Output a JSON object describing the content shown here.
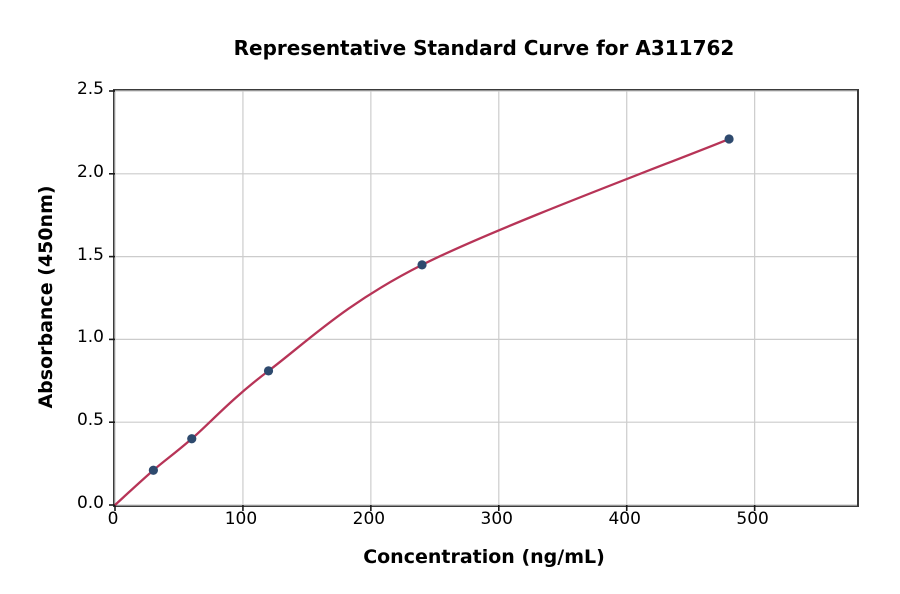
{
  "title": "Representative Standard Curve for A311762",
  "axes": {
    "x_label": "Concentration (ng/mL)",
    "y_label": "Absorbance (450nm)"
  },
  "chart_data": {
    "type": "scatter",
    "title": "Representative Standard Curve for A311762",
    "xlabel": "Concentration (ng/mL)",
    "ylabel": "Absorbance (450nm)",
    "x": [
      30,
      60,
      120,
      240,
      480
    ],
    "y": [
      0.21,
      0.4,
      0.81,
      1.45,
      2.21
    ],
    "fit_curve": {
      "style": "smooth",
      "points_x": [
        0,
        30,
        60,
        120,
        240,
        480
      ],
      "points_y": [
        0,
        0.21,
        0.4,
        0.81,
        1.45,
        2.21
      ]
    },
    "xlim": [
      0,
      580
    ],
    "ylim": [
      0,
      2.5
    ],
    "x_ticks": [
      {
        "value": 0,
        "label": "0"
      },
      {
        "value": 100,
        "label": "100"
      },
      {
        "value": 200,
        "label": "200"
      },
      {
        "value": 300,
        "label": "300"
      },
      {
        "value": 400,
        "label": "400"
      },
      {
        "value": 500,
        "label": "500"
      }
    ],
    "y_ticks": [
      {
        "value": 0.0,
        "label": "0.0"
      },
      {
        "value": 0.5,
        "label": "0.5"
      },
      {
        "value": 1.0,
        "label": "1.0"
      },
      {
        "value": 1.5,
        "label": "1.5"
      },
      {
        "value": 2.0,
        "label": "2.0"
      },
      {
        "value": 2.5,
        "label": "2.5"
      }
    ],
    "grid": true,
    "legend": null,
    "colors": {
      "line": "#b73457",
      "marker": "#2e4a6e",
      "grid": "#cccccc",
      "spine": "#3a3a3a",
      "tick": "#1a1a1a",
      "text": "#000000"
    }
  }
}
